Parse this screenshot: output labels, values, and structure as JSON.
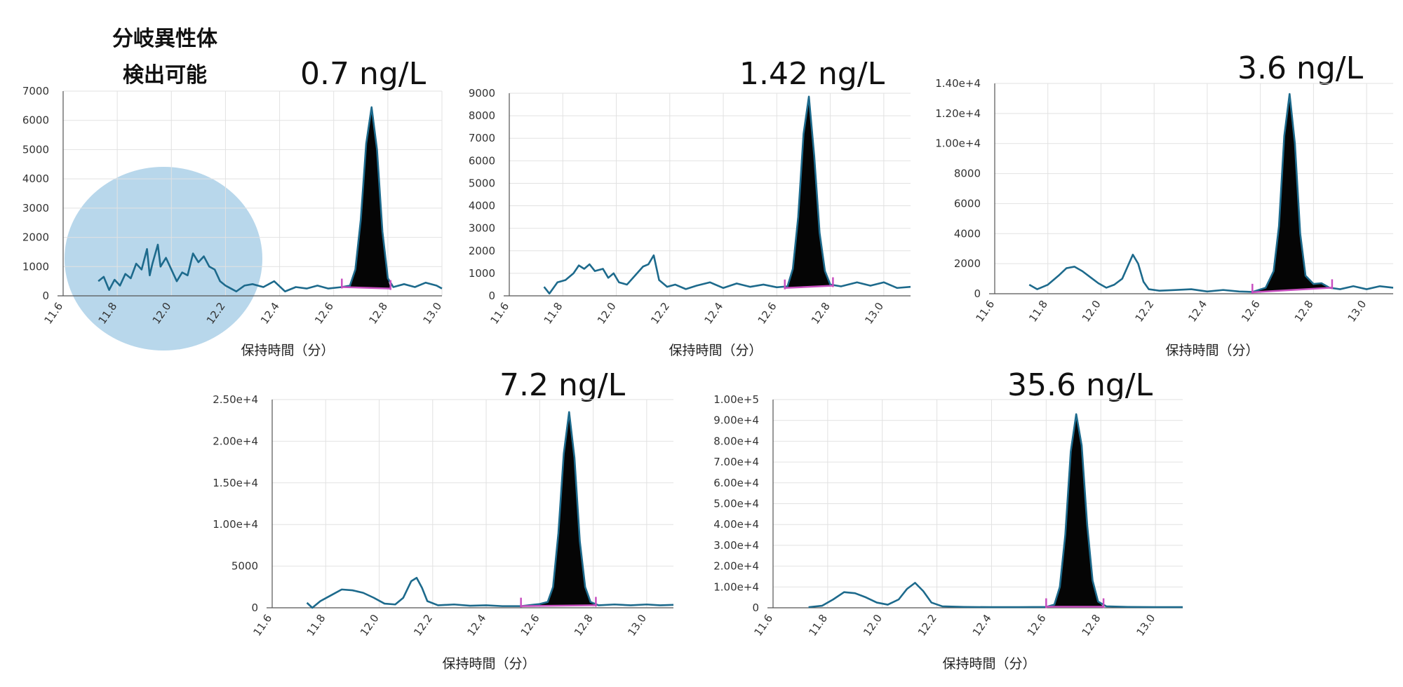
{
  "annotation": {
    "line1": "分岐異性体",
    "line2": "検出可能",
    "highlight_color": "#b4d5ea"
  },
  "colors": {
    "trace": "#1d6a8c",
    "peak_fill": "#050505",
    "baseline": "#c84fc0",
    "grid": "#e2e2e2",
    "axis": "#555555"
  },
  "chart_data": [
    {
      "type": "line",
      "title": "0.7 ng/L",
      "xlabel": "保持時間（分）",
      "ylabel": "",
      "xlim": [
        11.6,
        13.0
      ],
      "ylim": [
        0,
        7000
      ],
      "x_ticks": [
        "11.6",
        "11.8",
        "12.0",
        "12.2",
        "12.4",
        "12.6",
        "12.8",
        "13.0"
      ],
      "y_ticks": [
        "0",
        "1000",
        "2000",
        "3000",
        "4000",
        "5000",
        "6000",
        "7000"
      ],
      "y_tick_values": [
        0,
        1000,
        2000,
        3000,
        4000,
        5000,
        6000,
        7000
      ],
      "peak": {
        "apex_x": 12.74,
        "apex_y": 6450,
        "start_x": 12.63,
        "end_x": 12.81
      },
      "baseline_y": [
        300,
        250
      ],
      "series": [
        {
          "values": [
            [
              11.73,
              500
            ],
            [
              11.75,
              650
            ],
            [
              11.77,
              200
            ],
            [
              11.79,
              550
            ],
            [
              11.81,
              350
            ],
            [
              11.83,
              750
            ],
            [
              11.85,
              600
            ],
            [
              11.87,
              1100
            ],
            [
              11.89,
              900
            ],
            [
              11.91,
              1600
            ],
            [
              11.92,
              700
            ],
            [
              11.93,
              1100
            ],
            [
              11.95,
              1750
            ],
            [
              11.96,
              1000
            ],
            [
              11.98,
              1300
            ],
            [
              12.0,
              900
            ],
            [
              12.02,
              500
            ],
            [
              12.04,
              800
            ],
            [
              12.06,
              700
            ],
            [
              12.08,
              1450
            ],
            [
              12.1,
              1150
            ],
            [
              12.12,
              1350
            ],
            [
              12.14,
              1000
            ],
            [
              12.16,
              900
            ],
            [
              12.18,
              500
            ],
            [
              12.2,
              350
            ],
            [
              12.22,
              250
            ],
            [
              12.24,
              150
            ],
            [
              12.27,
              350
            ],
            [
              12.3,
              400
            ],
            [
              12.34,
              300
            ],
            [
              12.38,
              500
            ],
            [
              12.42,
              150
            ],
            [
              12.46,
              300
            ],
            [
              12.5,
              250
            ],
            [
              12.54,
              350
            ],
            [
              12.58,
              250
            ],
            [
              12.63,
              300
            ],
            [
              12.66,
              350
            ],
            [
              12.68,
              900
            ],
            [
              12.7,
              2600
            ],
            [
              12.72,
              5200
            ],
            [
              12.74,
              6450
            ],
            [
              12.76,
              5000
            ],
            [
              12.78,
              2200
            ],
            [
              12.8,
              600
            ],
            [
              12.82,
              300
            ],
            [
              12.86,
              400
            ],
            [
              12.9,
              300
            ],
            [
              12.94,
              450
            ],
            [
              12.98,
              350
            ],
            [
              13.0,
              250
            ]
          ]
        }
      ]
    },
    {
      "type": "line",
      "title": "1.42 ng/L",
      "xlabel": "保持時間（分）",
      "ylabel": "",
      "xlim": [
        11.6,
        13.1
      ],
      "ylim": [
        0,
        9000
      ],
      "x_ticks": [
        "11.6",
        "11.8",
        "12.0",
        "12.2",
        "12.4",
        "12.6",
        "12.8",
        "13.0"
      ],
      "y_ticks": [
        "0",
        "1000",
        "2000",
        "3000",
        "4000",
        "5000",
        "6000",
        "7000",
        "8000",
        "9000"
      ],
      "y_tick_values": [
        0,
        1000,
        2000,
        3000,
        4000,
        5000,
        6000,
        7000,
        8000,
        9000
      ],
      "peak": {
        "apex_x": 12.72,
        "apex_y": 8850,
        "start_x": 12.63,
        "end_x": 12.81
      },
      "baseline_y": [
        350,
        450
      ],
      "series": [
        {
          "values": [
            [
              11.73,
              400
            ],
            [
              11.75,
              100
            ],
            [
              11.78,
              600
            ],
            [
              11.81,
              700
            ],
            [
              11.84,
              1000
            ],
            [
              11.86,
              1350
            ],
            [
              11.88,
              1200
            ],
            [
              11.9,
              1400
            ],
            [
              11.92,
              1100
            ],
            [
              11.95,
              1200
            ],
            [
              11.97,
              800
            ],
            [
              11.99,
              1000
            ],
            [
              12.01,
              600
            ],
            [
              12.04,
              500
            ],
            [
              12.07,
              900
            ],
            [
              12.1,
              1300
            ],
            [
              12.12,
              1400
            ],
            [
              12.14,
              1800
            ],
            [
              12.16,
              700
            ],
            [
              12.19,
              400
            ],
            [
              12.22,
              500
            ],
            [
              12.26,
              300
            ],
            [
              12.3,
              450
            ],
            [
              12.35,
              600
            ],
            [
              12.4,
              350
            ],
            [
              12.45,
              550
            ],
            [
              12.5,
              400
            ],
            [
              12.55,
              500
            ],
            [
              12.6,
              380
            ],
            [
              12.64,
              420
            ],
            [
              12.66,
              1200
            ],
            [
              12.68,
              3500
            ],
            [
              12.7,
              7200
            ],
            [
              12.72,
              8850
            ],
            [
              12.74,
              6200
            ],
            [
              12.76,
              2800
            ],
            [
              12.78,
              1100
            ],
            [
              12.8,
              500
            ],
            [
              12.84,
              420
            ],
            [
              12.9,
              600
            ],
            [
              12.95,
              450
            ],
            [
              13.0,
              600
            ],
            [
              13.05,
              350
            ],
            [
              13.1,
              400
            ]
          ]
        }
      ]
    },
    {
      "type": "line",
      "title": "3.6 ng/L",
      "xlabel": "保持時間（分）",
      "ylabel": "",
      "xlim": [
        11.6,
        13.1
      ],
      "ylim": [
        0,
        14000
      ],
      "x_ticks": [
        "11.6",
        "11.8",
        "12.0",
        "12.2",
        "12.4",
        "12.6",
        "12.8",
        "13.0"
      ],
      "y_ticks": [
        "0",
        "2000",
        "4000",
        "6000",
        "8000",
        "1.00e+4",
        "1.20e+4",
        "1.40e+4"
      ],
      "y_tick_values": [
        0,
        2000,
        4000,
        6000,
        8000,
        10000,
        12000,
        14000
      ],
      "peak": {
        "apex_x": 12.71,
        "apex_y": 13300,
        "start_x": 12.57,
        "end_x": 12.87
      },
      "baseline_y": [
        100,
        400
      ],
      "series": [
        {
          "values": [
            [
              11.73,
              600
            ],
            [
              11.76,
              300
            ],
            [
              11.8,
              600
            ],
            [
              11.84,
              1200
            ],
            [
              11.87,
              1700
            ],
            [
              11.9,
              1800
            ],
            [
              11.93,
              1500
            ],
            [
              11.96,
              1100
            ],
            [
              11.99,
              700
            ],
            [
              12.02,
              400
            ],
            [
              12.05,
              600
            ],
            [
              12.08,
              1000
            ],
            [
              12.1,
              1800
            ],
            [
              12.12,
              2600
            ],
            [
              12.14,
              2000
            ],
            [
              12.16,
              800
            ],
            [
              12.18,
              300
            ],
            [
              12.22,
              200
            ],
            [
              12.28,
              250
            ],
            [
              12.34,
              300
            ],
            [
              12.4,
              150
            ],
            [
              12.46,
              250
            ],
            [
              12.52,
              150
            ],
            [
              12.57,
              120
            ],
            [
              12.62,
              400
            ],
            [
              12.65,
              1500
            ],
            [
              12.67,
              4500
            ],
            [
              12.69,
              10500
            ],
            [
              12.71,
              13300
            ],
            [
              12.73,
              10000
            ],
            [
              12.75,
              4000
            ],
            [
              12.77,
              1200
            ],
            [
              12.8,
              650
            ],
            [
              12.83,
              700
            ],
            [
              12.86,
              400
            ],
            [
              12.9,
              300
            ],
            [
              12.95,
              500
            ],
            [
              13.0,
              300
            ],
            [
              13.05,
              500
            ],
            [
              13.1,
              400
            ]
          ]
        }
      ]
    },
    {
      "type": "line",
      "title": "7.2 ng/L",
      "xlabel": "保持時間（分）",
      "ylabel": "",
      "xlim": [
        11.6,
        13.1
      ],
      "ylim": [
        0,
        25000
      ],
      "x_ticks": [
        "11.6",
        "11.8",
        "12.0",
        "12.2",
        "12.4",
        "12.6",
        "12.8",
        "13.0"
      ],
      "y_ticks": [
        "0",
        "5000",
        "1.00e+4",
        "1.50e+4",
        "2.00e+4",
        "2.50e+4"
      ],
      "y_tick_values": [
        0,
        5000,
        10000,
        15000,
        20000,
        25000
      ],
      "peak": {
        "apex_x": 12.71,
        "apex_y": 23500,
        "start_x": 12.53,
        "end_x": 12.81
      },
      "baseline_y": [
        200,
        300
      ],
      "series": [
        {
          "values": [
            [
              11.73,
              600
            ],
            [
              11.75,
              0
            ],
            [
              11.78,
              800
            ],
            [
              11.82,
              1500
            ],
            [
              11.86,
              2200
            ],
            [
              11.9,
              2100
            ],
            [
              11.94,
              1800
            ],
            [
              11.98,
              1200
            ],
            [
              12.02,
              500
            ],
            [
              12.06,
              400
            ],
            [
              12.09,
              1200
            ],
            [
              12.12,
              3200
            ],
            [
              12.14,
              3600
            ],
            [
              12.16,
              2400
            ],
            [
              12.18,
              800
            ],
            [
              12.22,
              300
            ],
            [
              12.28,
              400
            ],
            [
              12.34,
              250
            ],
            [
              12.4,
              300
            ],
            [
              12.46,
              200
            ],
            [
              12.53,
              200
            ],
            [
              12.6,
              450
            ],
            [
              12.63,
              700
            ],
            [
              12.65,
              2500
            ],
            [
              12.67,
              9000
            ],
            [
              12.69,
              18500
            ],
            [
              12.71,
              23500
            ],
            [
              12.73,
              18000
            ],
            [
              12.75,
              8000
            ],
            [
              12.77,
              2500
            ],
            [
              12.79,
              700
            ],
            [
              12.82,
              300
            ],
            [
              12.88,
              400
            ],
            [
              12.94,
              300
            ],
            [
              13.0,
              400
            ],
            [
              13.05,
              300
            ],
            [
              13.1,
              350
            ]
          ]
        }
      ]
    },
    {
      "type": "line",
      "title": "35.6 ng/L",
      "xlabel": "保持時間（分）",
      "ylabel": "",
      "xlim": [
        11.6,
        13.1
      ],
      "ylim": [
        0,
        100000
      ],
      "x_ticks": [
        "11.6",
        "11.8",
        "12.0",
        "12.2",
        "12.4",
        "12.6",
        "12.8",
        "13.0"
      ],
      "y_ticks": [
        "0",
        "1.00e+4",
        "2.00e+4",
        "3.00e+4",
        "4.00e+4",
        "5.00e+4",
        "6.00e+4",
        "7.00e+4",
        "8.00e+4",
        "9.00e+4",
        "1.00e+5"
      ],
      "y_tick_values": [
        0,
        10000,
        20000,
        30000,
        40000,
        50000,
        60000,
        70000,
        80000,
        90000,
        100000
      ],
      "peak": {
        "apex_x": 12.71,
        "apex_y": 93000,
        "start_x": 12.6,
        "end_x": 12.81
      },
      "baseline_y": [
        500,
        500
      ],
      "series": [
        {
          "values": [
            [
              11.73,
              300
            ],
            [
              11.78,
              1000
            ],
            [
              11.82,
              4000
            ],
            [
              11.86,
              7500
            ],
            [
              11.9,
              7000
            ],
            [
              11.94,
              5000
            ],
            [
              11.98,
              2500
            ],
            [
              12.02,
              1500
            ],
            [
              12.06,
              4000
            ],
            [
              12.09,
              9000
            ],
            [
              12.12,
              12000
            ],
            [
              12.15,
              8000
            ],
            [
              12.18,
              2500
            ],
            [
              12.22,
              700
            ],
            [
              12.3,
              400
            ],
            [
              12.4,
              300
            ],
            [
              12.5,
              300
            ],
            [
              12.6,
              400
            ],
            [
              12.63,
              1500
            ],
            [
              12.65,
              10000
            ],
            [
              12.67,
              35000
            ],
            [
              12.69,
              75000
            ],
            [
              12.71,
              93000
            ],
            [
              12.73,
              78000
            ],
            [
              12.75,
              40000
            ],
            [
              12.77,
              13000
            ],
            [
              12.79,
              3000
            ],
            [
              12.82,
              700
            ],
            [
              12.9,
              400
            ],
            [
              13.0,
              300
            ],
            [
              13.1,
              300
            ]
          ]
        }
      ]
    }
  ]
}
